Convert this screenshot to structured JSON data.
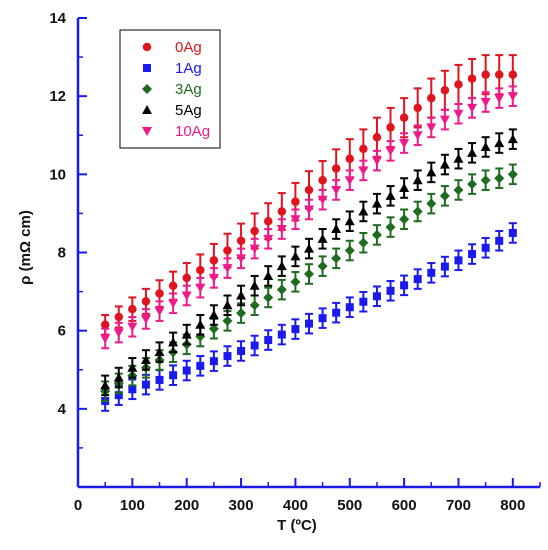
{
  "chart_data": {
    "type": "scatter",
    "xlabel": "T (ºC)",
    "ylabel": "ρ (mΩ cm)",
    "xlim": [
      0,
      850
    ],
    "ylim": [
      2,
      14
    ],
    "xticks": [
      "0",
      "100",
      "200",
      "300",
      "400",
      "500",
      "600",
      "700",
      "800"
    ],
    "yticks": [
      "4",
      "6",
      "8",
      "10",
      "12",
      "14"
    ],
    "grid": false,
    "error_bars": true,
    "legend_position": "top-left",
    "x": [
      50,
      75,
      100,
      125,
      150,
      175,
      200,
      225,
      250,
      275,
      300,
      325,
      350,
      375,
      400,
      425,
      450,
      475,
      500,
      525,
      550,
      575,
      600,
      625,
      650,
      675,
      700,
      725,
      750,
      775,
      800
    ],
    "series": [
      {
        "name": "0Ag",
        "color": "#e0141e",
        "marker": "circle",
        "values": [
          6.15,
          6.35,
          6.55,
          6.75,
          6.95,
          7.15,
          7.35,
          7.55,
          7.8,
          8.05,
          8.3,
          8.55,
          8.8,
          9.05,
          9.3,
          9.6,
          9.85,
          10.15,
          10.4,
          10.65,
          10.95,
          11.2,
          11.45,
          11.7,
          11.95,
          12.15,
          12.3,
          12.45,
          12.55,
          12.55,
          12.55
        ],
        "errors": [
          0.25,
          0.27,
          0.3,
          0.32,
          0.34,
          0.36,
          0.38,
          0.4,
          0.42,
          0.43,
          0.44,
          0.45,
          0.46,
          0.47,
          0.48,
          0.48,
          0.49,
          0.49,
          0.5,
          0.5,
          0.5,
          0.5,
          0.5,
          0.5,
          0.5,
          0.5,
          0.5,
          0.5,
          0.5,
          0.5,
          0.5
        ]
      },
      {
        "name": "1Ag",
        "color": "#1a1aee",
        "marker": "square",
        "values": [
          4.2,
          4.35,
          4.5,
          4.62,
          4.74,
          4.86,
          4.98,
          5.1,
          5.22,
          5.35,
          5.48,
          5.62,
          5.76,
          5.9,
          6.04,
          6.18,
          6.32,
          6.46,
          6.6,
          6.74,
          6.88,
          7.02,
          7.16,
          7.32,
          7.48,
          7.64,
          7.8,
          7.96,
          8.12,
          8.3,
          8.5
        ]
      },
      {
        "name": "3Ag",
        "color": "#1f6b1f",
        "marker": "diamond",
        "values": [
          4.45,
          4.65,
          4.85,
          5.05,
          5.25,
          5.45,
          5.65,
          5.85,
          6.05,
          6.25,
          6.45,
          6.65,
          6.85,
          7.05,
          7.25,
          7.45,
          7.65,
          7.85,
          8.05,
          8.25,
          8.45,
          8.65,
          8.85,
          9.05,
          9.25,
          9.45,
          9.6,
          9.75,
          9.85,
          9.9,
          10.0
        ]
      },
      {
        "name": "5Ag",
        "color": "#000000",
        "marker": "triangle-up",
        "values": [
          4.6,
          4.8,
          5.05,
          5.25,
          5.45,
          5.7,
          5.9,
          6.15,
          6.4,
          6.65,
          6.9,
          7.15,
          7.4,
          7.65,
          7.9,
          8.1,
          8.35,
          8.6,
          8.8,
          9.05,
          9.25,
          9.45,
          9.65,
          9.85,
          10.05,
          10.25,
          10.4,
          10.55,
          10.7,
          10.8,
          10.9
        ]
      },
      {
        "name": "10Ag",
        "color": "#ee1a8c",
        "marker": "triangle-down",
        "values": [
          5.8,
          5.95,
          6.1,
          6.3,
          6.5,
          6.7,
          6.9,
          7.1,
          7.35,
          7.6,
          7.85,
          8.1,
          8.35,
          8.6,
          8.85,
          9.1,
          9.35,
          9.6,
          9.85,
          10.1,
          10.35,
          10.6,
          10.8,
          11.0,
          11.2,
          11.4,
          11.55,
          11.7,
          11.85,
          11.95,
          12.0
        ]
      }
    ]
  }
}
